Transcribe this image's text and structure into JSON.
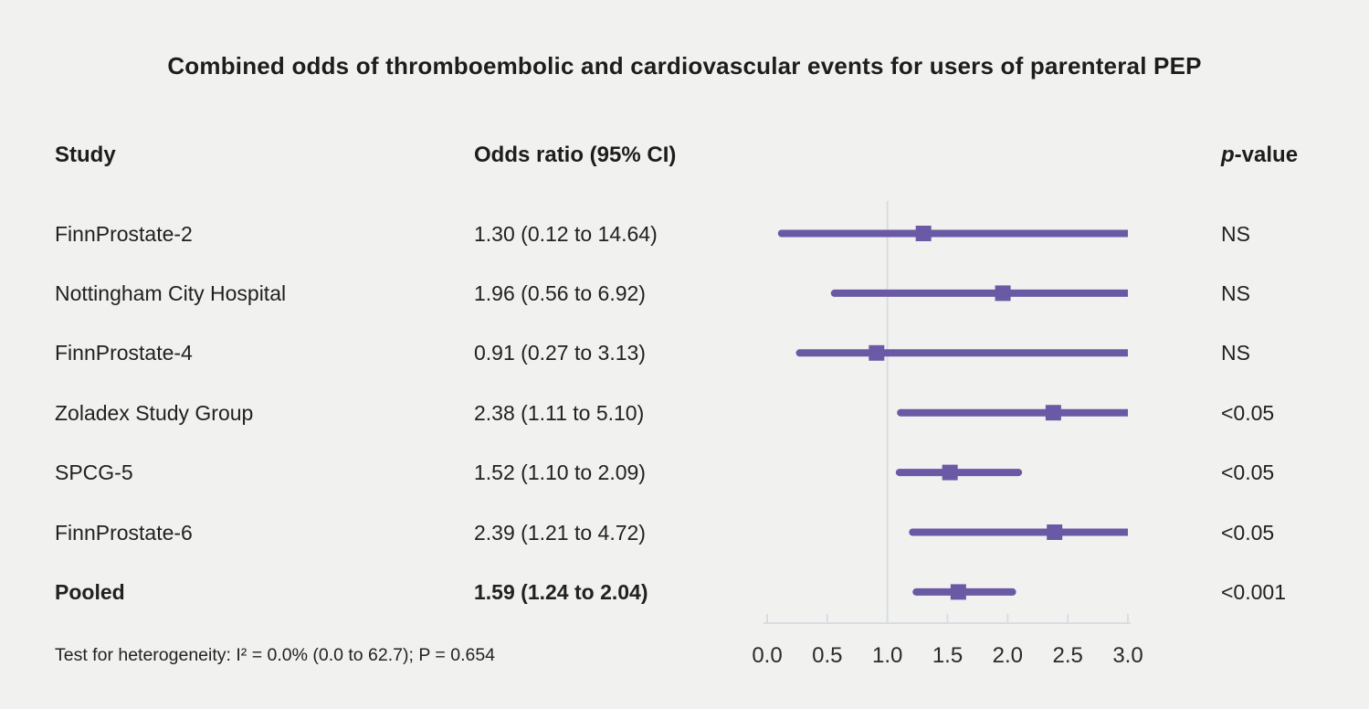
{
  "title": "Combined odds of thromboembolic and cardiovascular events for users of parenteral PEP",
  "columns": {
    "study": "Study",
    "odds_ratio": "Odds ratio (95% CI)",
    "p_italic": "p",
    "p_rest": "-value"
  },
  "footer": "Test for heterogeneity: I² = 0.0% (0.0 to 62.7); P = 0.654",
  "colors": {
    "marker": "#6a5aa5",
    "axis": "#d9dde1",
    "tick_text": "#2a2a2a",
    "background": "#f1f1f0"
  },
  "chart_data": {
    "type": "forest",
    "title": "Combined odds of thromboembolic and cardiovascular events for users of parenteral PEP",
    "x_range": [
      0.0,
      3.0
    ],
    "axis_tick_values": [
      0.0,
      0.5,
      1.0,
      1.5,
      2.0,
      2.5,
      3.0
    ],
    "axis_tick_labels": [
      "0.0",
      "0.5",
      "1.0",
      "1.5",
      "2.0",
      "2.5",
      "3.0"
    ],
    "reference_line": 1.0,
    "truncate_at": 3.0,
    "grid": false,
    "studies": [
      {
        "study": "FinnProstate-2",
        "or": 1.3,
        "ci_low": 0.12,
        "ci_high": 14.64,
        "or_label": "1.30 (0.12 to 14.64)",
        "p": "NS",
        "pooled": false
      },
      {
        "study": "Nottingham City Hospital",
        "or": 1.96,
        "ci_low": 0.56,
        "ci_high": 6.92,
        "or_label": "1.96 (0.56 to 6.92)",
        "p": "NS",
        "pooled": false
      },
      {
        "study": "FinnProstate-4",
        "or": 0.91,
        "ci_low": 0.27,
        "ci_high": 3.13,
        "or_label": "0.91 (0.27 to 3.13)",
        "p": "NS",
        "pooled": false
      },
      {
        "study": "Zoladex Study Group",
        "or": 2.38,
        "ci_low": 1.11,
        "ci_high": 5.1,
        "or_label": "2.38 (1.11 to 5.10)",
        "p": "<0.05",
        "pooled": false
      },
      {
        "study": "SPCG-5",
        "or": 1.52,
        "ci_low": 1.1,
        "ci_high": 2.09,
        "or_label": "1.52 (1.10 to 2.09)",
        "p": "<0.05",
        "pooled": false
      },
      {
        "study": "FinnProstate-6",
        "or": 2.39,
        "ci_low": 1.21,
        "ci_high": 4.72,
        "or_label": "2.39 (1.21 to 4.72)",
        "p": "<0.05",
        "pooled": false
      },
      {
        "study": "Pooled",
        "or": 1.59,
        "ci_low": 1.24,
        "ci_high": 2.04,
        "or_label": "1.59 (1.24 to 2.04)",
        "p": "<0.001",
        "pooled": true
      }
    ]
  }
}
